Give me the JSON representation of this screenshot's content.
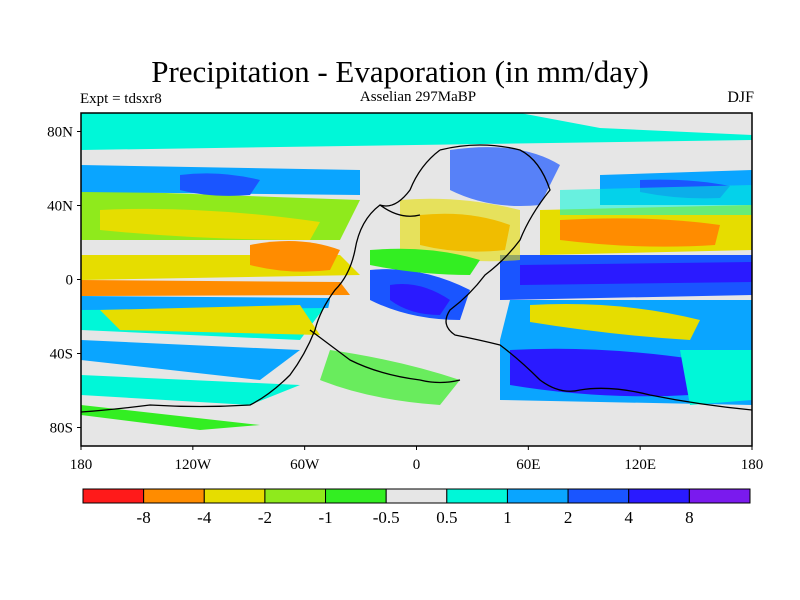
{
  "title": "Precipitation - Evaporation (in mm/day)",
  "subtitle_left": "Expt = tdsxr8",
  "subtitle_center": "Asselian 297MaBP",
  "subtitle_right": "DJF",
  "map": {
    "projection": "cylindrical equidistant",
    "lon_range": [
      -180,
      180
    ],
    "lat_range": [
      -90,
      90
    ],
    "lat_labels": [
      "80N",
      "40N",
      "0",
      "40S",
      "80S"
    ],
    "lat_values": [
      80,
      40,
      0,
      -40,
      -80
    ],
    "lon_labels": [
      "180",
      "120W",
      "60W",
      "0",
      "60E",
      "120E",
      "180"
    ],
    "lon_values": [
      -180,
      -120,
      -60,
      0,
      60,
      120,
      180
    ]
  },
  "colorbar": {
    "colors": [
      "#ff1a1a",
      "#ff8c00",
      "#e6dd00",
      "#8fea1c",
      "#33ee22",
      "#e6e6e6",
      "#00f7d8",
      "#0aa5ff",
      "#1a55ff",
      "#2a1aff",
      "#7a1aee"
    ],
    "labels": [
      "-8",
      "-4",
      "-2",
      "-1",
      "-0.5",
      "0.5",
      "1",
      "2",
      "4",
      "8"
    ],
    "thresholds": [
      -8,
      -4,
      -2,
      -1,
      -0.5,
      0.5,
      1,
      2,
      4,
      8
    ]
  }
}
